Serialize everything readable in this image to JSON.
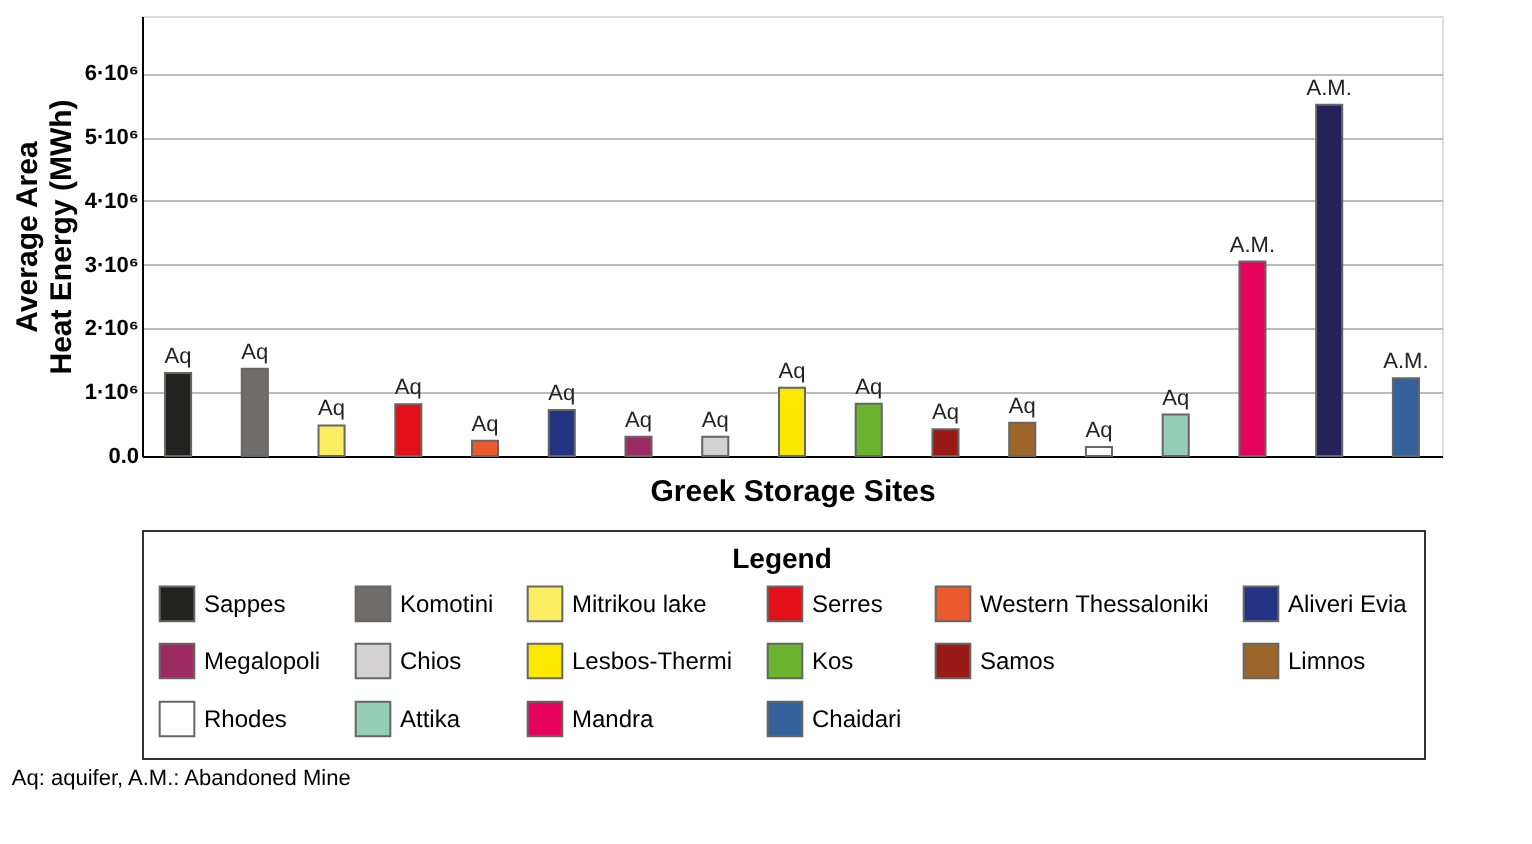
{
  "chart_data": {
    "type": "bar",
    "xlabel": "Greek Storage Sites",
    "ylabel": "Average Area Heat Energy (MWh)",
    "legend_title": "Legend",
    "categories": [
      null,
      null,
      null,
      null,
      null,
      null,
      null,
      null,
      null,
      null,
      null,
      null,
      null,
      null,
      null,
      null,
      null
    ],
    "series": [
      {
        "name": "Sappes",
        "color": "#222220",
        "values": [
          1300000,
          null,
          null,
          null,
          null,
          null,
          null,
          null,
          null,
          null,
          null,
          null,
          null,
          null,
          null,
          null,
          null
        ],
        "value_labels": [
          "Aq",
          null,
          null,
          null,
          null,
          null,
          null,
          null,
          null,
          null,
          null,
          null,
          null,
          null,
          null,
          null,
          null
        ]
      },
      {
        "name": "Komotini",
        "color": "#706c6a",
        "values": [
          null,
          1370000,
          null,
          null,
          null,
          null,
          null,
          null,
          null,
          null,
          null,
          null,
          null,
          null,
          null,
          null,
          null
        ],
        "value_labels": [
          null,
          "Aq",
          null,
          null,
          null,
          null,
          null,
          null,
          null,
          null,
          null,
          null,
          null,
          null,
          null,
          null,
          null
        ]
      },
      {
        "name": "Mitrikou lake",
        "color": "#fced62",
        "values": [
          null,
          null,
          480000,
          null,
          null,
          null,
          null,
          null,
          null,
          null,
          null,
          null,
          null,
          null,
          null,
          null,
          null
        ],
        "value_labels": [
          null,
          null,
          "Aq",
          null,
          null,
          null,
          null,
          null,
          null,
          null,
          null,
          null,
          null,
          null,
          null,
          null,
          null
        ]
      },
      {
        "name": "Serres",
        "color": "#e3101a",
        "values": [
          null,
          null,
          null,
          810000,
          null,
          null,
          null,
          null,
          null,
          null,
          null,
          null,
          null,
          null,
          null,
          null,
          null
        ],
        "value_labels": [
          null,
          null,
          null,
          "Aq",
          null,
          null,
          null,
          null,
          null,
          null,
          null,
          null,
          null,
          null,
          null,
          null,
          null
        ]
      },
      {
        "name": "Western Thessaloniki",
        "color": "#ea5a2c",
        "values": [
          null,
          null,
          null,
          null,
          240000,
          null,
          null,
          null,
          null,
          null,
          null,
          null,
          null,
          null,
          null,
          null,
          null
        ],
        "value_labels": [
          null,
          null,
          null,
          null,
          "Aq",
          null,
          null,
          null,
          null,
          null,
          null,
          null,
          null,
          null,
          null,
          null,
          null
        ]
      },
      {
        "name": "Aliveri Evia",
        "color": "#253385",
        "values": [
          null,
          null,
          null,
          null,
          null,
          720000,
          null,
          null,
          null,
          null,
          null,
          null,
          null,
          null,
          null,
          null,
          null
        ],
        "value_labels": [
          null,
          null,
          null,
          null,
          null,
          "Aq",
          null,
          null,
          null,
          null,
          null,
          null,
          null,
          null,
          null,
          null,
          null
        ]
      },
      {
        "name": "Megalopoli",
        "color": "#9c2a63",
        "values": [
          null,
          null,
          null,
          null,
          null,
          null,
          300000,
          null,
          null,
          null,
          null,
          null,
          null,
          null,
          null,
          null,
          null
        ],
        "value_labels": [
          null,
          null,
          null,
          null,
          null,
          null,
          "Aq",
          null,
          null,
          null,
          null,
          null,
          null,
          null,
          null,
          null,
          null
        ]
      },
      {
        "name": "Chios",
        "color": "#d3d1d2",
        "values": [
          null,
          null,
          null,
          null,
          null,
          null,
          null,
          300000,
          null,
          null,
          null,
          null,
          null,
          null,
          null,
          null,
          null
        ],
        "value_labels": [
          null,
          null,
          null,
          null,
          null,
          null,
          null,
          "Aq",
          null,
          null,
          null,
          null,
          null,
          null,
          null,
          null,
          null
        ]
      },
      {
        "name": "Lesbos-Thermi",
        "color": "#fbe800",
        "values": [
          null,
          null,
          null,
          null,
          null,
          null,
          null,
          null,
          1070000,
          null,
          null,
          null,
          null,
          null,
          null,
          null,
          null
        ],
        "value_labels": [
          null,
          null,
          null,
          null,
          null,
          null,
          null,
          null,
          "Aq",
          null,
          null,
          null,
          null,
          null,
          null,
          null,
          null
        ]
      },
      {
        "name": "Kos",
        "color": "#6bb22f",
        "values": [
          null,
          null,
          null,
          null,
          null,
          null,
          null,
          null,
          null,
          820000,
          null,
          null,
          null,
          null,
          null,
          null,
          null
        ],
        "value_labels": [
          null,
          null,
          null,
          null,
          null,
          null,
          null,
          null,
          null,
          "Aq",
          null,
          null,
          null,
          null,
          null,
          null,
          null
        ]
      },
      {
        "name": "Samos",
        "color": "#9a1a17",
        "values": [
          null,
          null,
          null,
          null,
          null,
          null,
          null,
          null,
          null,
          null,
          420000,
          null,
          null,
          null,
          null,
          null,
          null
        ],
        "value_labels": [
          null,
          null,
          null,
          null,
          null,
          null,
          null,
          null,
          null,
          null,
          "Aq",
          null,
          null,
          null,
          null,
          null,
          null
        ]
      },
      {
        "name": "Limnos",
        "color": "#9c662b",
        "values": [
          null,
          null,
          null,
          null,
          null,
          null,
          null,
          null,
          null,
          null,
          null,
          520000,
          null,
          null,
          null,
          null,
          null
        ],
        "value_labels": [
          null,
          null,
          null,
          null,
          null,
          null,
          null,
          null,
          null,
          null,
          null,
          "Aq",
          null,
          null,
          null,
          null,
          null
        ]
      },
      {
        "name": "Rhodes",
        "color": "#ffffff",
        "values": [
          null,
          null,
          null,
          null,
          null,
          null,
          null,
          null,
          null,
          null,
          null,
          null,
          140000,
          null,
          null,
          null,
          null
        ],
        "value_labels": [
          null,
          null,
          null,
          null,
          null,
          null,
          null,
          null,
          null,
          null,
          null,
          null,
          "Aq",
          null,
          null,
          null,
          null
        ]
      },
      {
        "name": "Attika",
        "color": "#96cdb8",
        "values": [
          null,
          null,
          null,
          null,
          null,
          null,
          null,
          null,
          null,
          null,
          null,
          null,
          null,
          650000,
          null,
          null,
          null
        ],
        "value_labels": [
          null,
          null,
          null,
          null,
          null,
          null,
          null,
          null,
          null,
          null,
          null,
          null,
          null,
          "Aq",
          null,
          null,
          null
        ]
      },
      {
        "name": "Mandra",
        "color": "#e5035c",
        "values": [
          null,
          null,
          null,
          null,
          null,
          null,
          null,
          null,
          null,
          null,
          null,
          null,
          null,
          null,
          3050000,
          null,
          null
        ],
        "value_labels": [
          null,
          null,
          null,
          null,
          null,
          null,
          null,
          null,
          null,
          null,
          null,
          null,
          null,
          null,
          "A.M.",
          null,
          null
        ]
      },
      {
        "color": "#25215a",
        "values": [
          null,
          null,
          null,
          null,
          null,
          null,
          null,
          null,
          null,
          null,
          null,
          null,
          null,
          null,
          null,
          5510000,
          null
        ],
        "value_labels": [
          null,
          null,
          null,
          null,
          null,
          null,
          null,
          null,
          null,
          null,
          null,
          null,
          null,
          null,
          null,
          "A.M.",
          null
        ]
      },
      {
        "name": "Chaidari",
        "color": "#33619a",
        "values": [
          null,
          null,
          null,
          null,
          null,
          null,
          null,
          null,
          null,
          null,
          null,
          null,
          null,
          null,
          null,
          null,
          1220000
        ],
        "value_labels": [
          null,
          null,
          null,
          null,
          null,
          null,
          null,
          null,
          null,
          null,
          null,
          null,
          null,
          null,
          null,
          null,
          "A.M."
        ]
      }
    ],
    "ylim": [
      0,
      6900000
    ],
    "yticks": [
      {
        "value": 0,
        "label": "0.0"
      },
      {
        "value": 1000000,
        "label": "1·10⁶"
      },
      {
        "value": 2000000,
        "label": "2·10⁶"
      },
      {
        "value": 3000000,
        "label": "3·10⁶"
      },
      {
        "value": 4000000,
        "label": "4·10⁶"
      },
      {
        "value": 5000000,
        "label": "5·10⁶"
      },
      {
        "value": 6000000,
        "label": "6·10⁶"
      }
    ],
    "grid": "y",
    "legend": "bottom",
    "annotations": [
      "Aq: aquifer, A.M.: Abandoned Mine"
    ]
  }
}
